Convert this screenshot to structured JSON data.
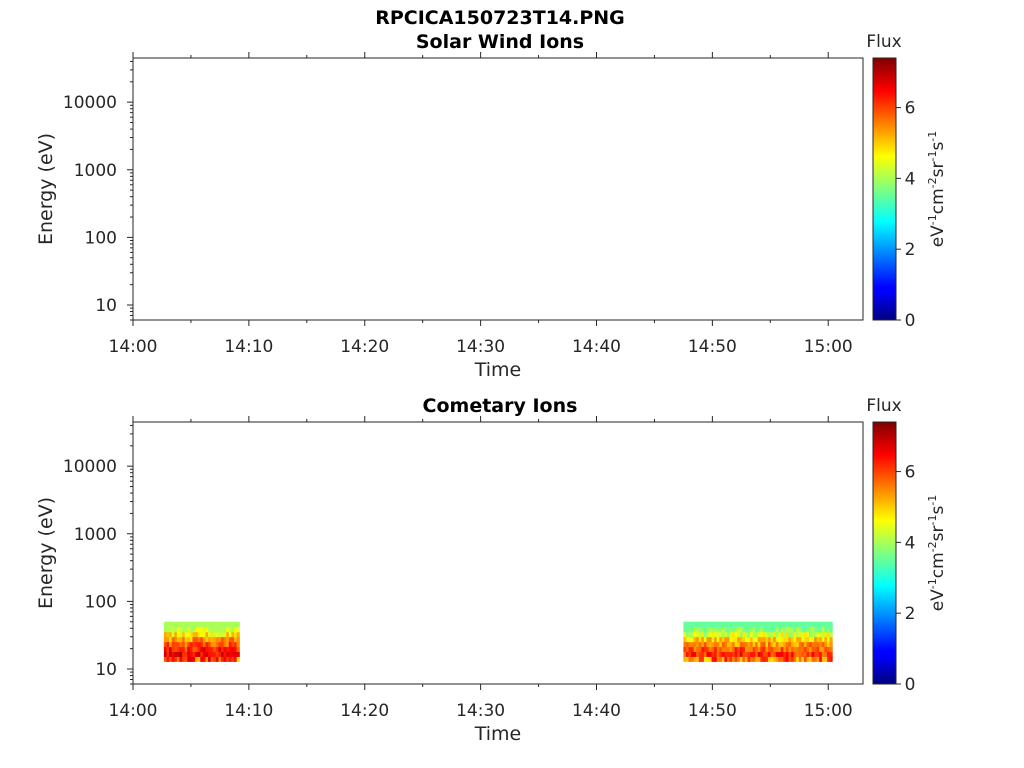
{
  "figure": {
    "title": "RPCICA150723T14.PNG",
    "colorbar": {
      "title": "Flux",
      "unit_base": "eV",
      "unit_exp1": "-1",
      "unit_cm": "cm",
      "unit_exp2": "-2",
      "unit_sr": "sr",
      "unit_exp3": "-1",
      "unit_s": "s",
      "unit_exp4": "-1",
      "ticks": [
        "0",
        "2",
        "4",
        "6"
      ],
      "range": [
        0,
        7.4
      ],
      "colormap": "jet"
    }
  },
  "chart_data": [
    {
      "type": "heatmap",
      "title": "Solar Wind Ions",
      "xlabel": "Time",
      "ylabel": "Energy (eV)",
      "x_ticks": [
        "14:00",
        "14:10",
        "14:20",
        "14:30",
        "14:40",
        "14:50",
        "15:00"
      ],
      "y_ticks": [
        "10",
        "100",
        "1000",
        "10000"
      ],
      "y_scale": "log",
      "xlim": [
        "14:00",
        "15:03"
      ],
      "ylim": [
        6,
        45000
      ],
      "blocks": []
    },
    {
      "type": "heatmap",
      "title": "Cometary Ions",
      "xlabel": "Time",
      "ylabel": "Energy (eV)",
      "x_ticks": [
        "14:00",
        "14:10",
        "14:20",
        "14:30",
        "14:40",
        "14:50",
        "15:00"
      ],
      "y_ticks": [
        "10",
        "100",
        "1000",
        "10000"
      ],
      "y_scale": "log",
      "xlim": [
        "14:00",
        "15:03"
      ],
      "ylim": [
        6,
        45000
      ],
      "blocks": [
        {
          "time_start": "14:02:40",
          "time_end": "14:09:10",
          "energy_range_eV": [
            13,
            50
          ],
          "flux_range": [
            4,
            7.2
          ]
        },
        {
          "time_start": "14:47:30",
          "time_end": "15:00:20",
          "energy_range_eV": [
            13,
            50
          ],
          "flux_range": [
            3.5,
            6.8
          ]
        }
      ]
    }
  ]
}
